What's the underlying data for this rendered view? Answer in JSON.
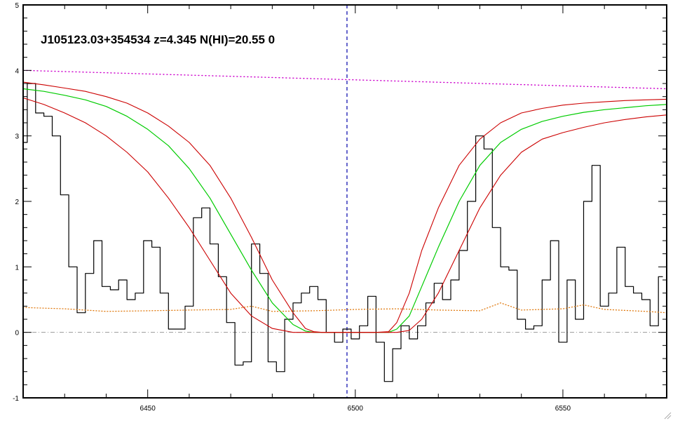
{
  "chart_data": {
    "type": "line",
    "title": "J105123.03+354534 z=4.345 N(HI)=20.55 0",
    "xlabel": "",
    "ylabel": "",
    "xlim": [
      6420,
      6575
    ],
    "ylim": [
      -1,
      5
    ],
    "x_ticks": [
      6450,
      6500,
      6550
    ],
    "y_ticks": [
      -1,
      0,
      1,
      2,
      3,
      4,
      5
    ],
    "absorber_center": 6498,
    "zero_level": 0,
    "colors": {
      "flux": "#000000",
      "fit": "#00cc00",
      "fit_bounds": "#cc0000",
      "continuum": "#cc00cc",
      "error": "#e07a10",
      "center": "#0000aa",
      "zero": "#999999"
    },
    "series": [
      {
        "key": "flux",
        "style": "step",
        "x": [
          6420,
          6422,
          6424,
          6426,
          6428,
          6430,
          6432,
          6434,
          6436,
          6438,
          6440,
          6442,
          6444,
          6446,
          6448,
          6450,
          6452,
          6454,
          6456,
          6458,
          6460,
          6462,
          6464,
          6466,
          6468,
          6470,
          6472,
          6474,
          6476,
          6478,
          6480,
          6482,
          6484,
          6486,
          6488,
          6490,
          6492,
          6494,
          6496,
          6498,
          6500,
          6502,
          6504,
          6506,
          6508,
          6510,
          6512,
          6514,
          6516,
          6518,
          6520,
          6522,
          6524,
          6526,
          6528,
          6530,
          6532,
          6534,
          6536,
          6538,
          6540,
          6542,
          6544,
          6546,
          6548,
          6550,
          6552,
          6554,
          6556,
          6558,
          6560,
          6562,
          6564,
          6566,
          6568,
          6570,
          6572,
          6574
        ],
        "y": [
          2.9,
          3.8,
          3.35,
          3.3,
          3.0,
          2.1,
          1.0,
          0.3,
          0.9,
          1.4,
          0.7,
          0.65,
          0.8,
          0.5,
          0.6,
          1.4,
          1.3,
          0.6,
          0.05,
          0.05,
          0.4,
          1.75,
          1.9,
          1.35,
          0.85,
          0.15,
          -0.5,
          -0.45,
          1.35,
          0.9,
          -0.45,
          -0.6,
          0.2,
          0.45,
          0.6,
          0.7,
          0.5,
          0.0,
          -0.15,
          0.05,
          -0.1,
          0.1,
          0.55,
          -0.15,
          -0.75,
          -0.25,
          0.1,
          -0.1,
          0.1,
          0.45,
          0.75,
          0.5,
          0.8,
          1.25,
          2.0,
          3.0,
          2.8,
          1.6,
          1.0,
          0.95,
          0.2,
          0.05,
          0.1,
          0.8,
          1.4,
          -0.15,
          0.8,
          0.2,
          2.0,
          2.55,
          0.4,
          0.6,
          1.3,
          0.7,
          0.6,
          0.5,
          0.1,
          0.85
        ]
      },
      {
        "key": "fit",
        "style": "line",
        "x": [
          6420,
          6425,
          6430,
          6435,
          6440,
          6445,
          6450,
          6455,
          6460,
          6465,
          6470,
          6475,
          6480,
          6485,
          6488,
          6490,
          6492,
          6495,
          6500,
          6505,
          6508,
          6510,
          6513,
          6516,
          6520,
          6525,
          6530,
          6535,
          6540,
          6545,
          6550,
          6555,
          6560,
          6565,
          6570,
          6575
        ],
        "y": [
          3.72,
          3.68,
          3.62,
          3.55,
          3.45,
          3.3,
          3.1,
          2.85,
          2.5,
          2.05,
          1.5,
          0.95,
          0.45,
          0.12,
          0.02,
          0.0,
          0.0,
          0.0,
          0.0,
          0.0,
          0.0,
          0.05,
          0.25,
          0.7,
          1.3,
          2.0,
          2.55,
          2.9,
          3.1,
          3.22,
          3.3,
          3.36,
          3.4,
          3.43,
          3.46,
          3.48
        ]
      },
      {
        "key": "fit_upper",
        "style": "line",
        "x": [
          6420,
          6425,
          6430,
          6435,
          6440,
          6445,
          6450,
          6455,
          6460,
          6465,
          6470,
          6475,
          6480,
          6485,
          6488,
          6490,
          6492,
          6495,
          6500,
          6505,
          6508,
          6510,
          6513,
          6516,
          6520,
          6525,
          6530,
          6535,
          6540,
          6545,
          6550,
          6555,
          6560,
          6565,
          6570,
          6575
        ],
        "y": [
          3.82,
          3.78,
          3.73,
          3.68,
          3.6,
          3.5,
          3.35,
          3.15,
          2.9,
          2.55,
          2.05,
          1.45,
          0.8,
          0.3,
          0.06,
          0.01,
          0.0,
          0.0,
          0.0,
          0.0,
          0.01,
          0.15,
          0.6,
          1.25,
          1.9,
          2.55,
          2.95,
          3.2,
          3.35,
          3.42,
          3.47,
          3.5,
          3.52,
          3.54,
          3.55,
          3.56
        ]
      },
      {
        "key": "fit_lower",
        "style": "line",
        "x": [
          6420,
          6425,
          6430,
          6435,
          6440,
          6445,
          6450,
          6455,
          6460,
          6465,
          6470,
          6475,
          6480,
          6485,
          6488,
          6490,
          6492,
          6495,
          6500,
          6505,
          6508,
          6510,
          6513,
          6516,
          6520,
          6525,
          6530,
          6535,
          6540,
          6545,
          6550,
          6555,
          6560,
          6565,
          6570,
          6575
        ],
        "y": [
          3.58,
          3.48,
          3.35,
          3.2,
          3.0,
          2.75,
          2.45,
          2.05,
          1.6,
          1.1,
          0.6,
          0.25,
          0.06,
          0.0,
          0.0,
          0.0,
          0.0,
          0.0,
          0.0,
          0.0,
          0.0,
          0.0,
          0.03,
          0.2,
          0.6,
          1.25,
          1.9,
          2.4,
          2.75,
          2.95,
          3.05,
          3.13,
          3.2,
          3.25,
          3.29,
          3.32
        ]
      },
      {
        "key": "continuum",
        "style": "dotted",
        "x": [
          6420,
          6575
        ],
        "y": [
          4.0,
          3.72
        ]
      },
      {
        "key": "error",
        "style": "dotted",
        "x": [
          6420,
          6430,
          6440,
          6450,
          6460,
          6470,
          6475,
          6480,
          6490,
          6500,
          6510,
          6520,
          6530,
          6535,
          6540,
          6550,
          6555,
          6560,
          6570,
          6575
        ],
        "y": [
          0.38,
          0.36,
          0.32,
          0.33,
          0.34,
          0.35,
          0.4,
          0.32,
          0.33,
          0.35,
          0.36,
          0.34,
          0.33,
          0.45,
          0.34,
          0.36,
          0.42,
          0.35,
          0.32,
          0.3
        ]
      }
    ]
  }
}
